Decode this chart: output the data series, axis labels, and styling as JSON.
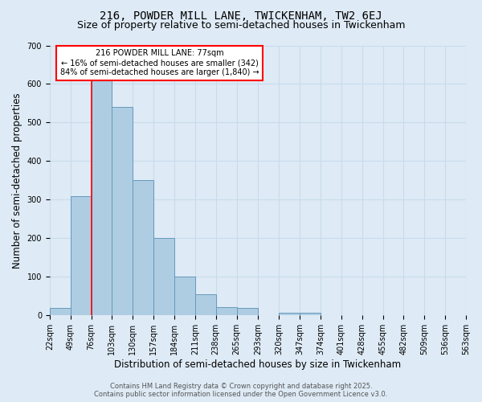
{
  "title1": "216, POWDER MILL LANE, TWICKENHAM, TW2 6EJ",
  "title2": "Size of property relative to semi-detached houses in Twickenham",
  "xlabel": "Distribution of semi-detached houses by size in Twickenham",
  "ylabel": "Number of semi-detached properties",
  "bin_edges": [
    22,
    49,
    76,
    103,
    130,
    157,
    184,
    211,
    238,
    265,
    293,
    320,
    347,
    374,
    401,
    428,
    455,
    482,
    509,
    536,
    563
  ],
  "bar_heights": [
    20,
    310,
    620,
    540,
    350,
    200,
    100,
    55,
    22,
    20,
    0,
    8,
    8,
    0,
    0,
    0,
    0,
    0,
    0,
    0
  ],
  "bar_color": "#aecde3",
  "bar_edge_color": "#6699bb",
  "grid_color": "#c8dced",
  "background_color": "#deeaf5",
  "red_line_x": 77,
  "annotation_text": "216 POWDER MILL LANE: 77sqm\n← 16% of semi-detached houses are smaller (342)\n84% of semi-detached houses are larger (1,840) →",
  "annotation_box_color": "white",
  "annotation_box_edge": "red",
  "footer1": "Contains HM Land Registry data © Crown copyright and database right 2025.",
  "footer2": "Contains public sector information licensed under the Open Government Licence v3.0.",
  "ylim": [
    0,
    700
  ],
  "yticks": [
    0,
    100,
    200,
    300,
    400,
    500,
    600,
    700
  ],
  "title1_fontsize": 10,
  "title2_fontsize": 9,
  "tick_fontsize": 7,
  "label_fontsize": 8.5,
  "footer_fontsize": 6,
  "annot_fontsize": 7
}
